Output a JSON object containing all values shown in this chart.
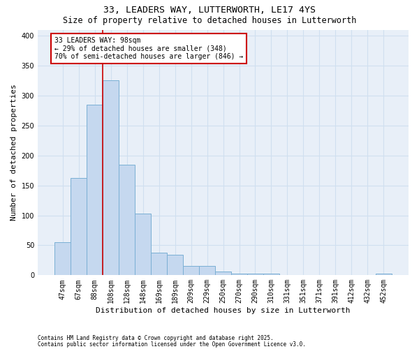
{
  "title1": "33, LEADERS WAY, LUTTERWORTH, LE17 4YS",
  "title2": "Size of property relative to detached houses in Lutterworth",
  "xlabel": "Distribution of detached houses by size in Lutterworth",
  "ylabel": "Number of detached properties",
  "categories": [
    "47sqm",
    "67sqm",
    "88sqm",
    "108sqm",
    "128sqm",
    "148sqm",
    "169sqm",
    "189sqm",
    "209sqm",
    "229sqm",
    "250sqm",
    "270sqm",
    "290sqm",
    "310sqm",
    "331sqm",
    "351sqm",
    "371sqm",
    "391sqm",
    "412sqm",
    "432sqm",
    "452sqm"
  ],
  "values": [
    55,
    162,
    285,
    325,
    185,
    103,
    38,
    34,
    16,
    16,
    6,
    3,
    3,
    3,
    0,
    0,
    0,
    0,
    0,
    0,
    3
  ],
  "bar_color": "#c5d8ef",
  "bar_edge_color": "#7aafd4",
  "grid_color": "#d0dff0",
  "background_color": "#e8eff8",
  "vline_color": "#cc0000",
  "annotation_text": "33 LEADERS WAY: 98sqm\n← 29% of detached houses are smaller (348)\n70% of semi-detached houses are larger (846) →",
  "annotation_box_color": "#cc0000",
  "footer1": "Contains HM Land Registry data © Crown copyright and database right 2025.",
  "footer2": "Contains public sector information licensed under the Open Government Licence v3.0.",
  "ylim": [
    0,
    410
  ],
  "yticks": [
    0,
    50,
    100,
    150,
    200,
    250,
    300,
    350,
    400
  ],
  "vline_x_index": 2,
  "title_fontsize": 9.5,
  "subtitle_fontsize": 8.5,
  "tick_fontsize": 7,
  "ylabel_fontsize": 8,
  "xlabel_fontsize": 8,
  "ann_fontsize": 7,
  "footer_fontsize": 5.5
}
